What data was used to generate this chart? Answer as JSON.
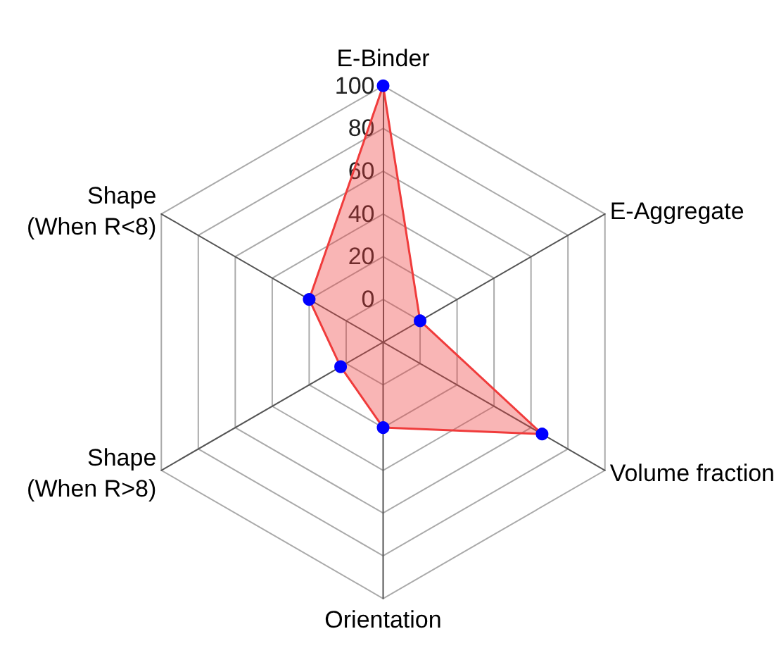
{
  "chart_data": {
    "type": "radar",
    "categories": [
      "E-Binder",
      "E-Aggregate",
      "Volume fraction",
      "Orientation",
      "Shape\n(When R>8)",
      "Shape\n(When R<8)"
    ],
    "series": [
      {
        "color": "#f03c3c",
        "colors": [
          "#0000ff",
          "#0000ff",
          "#0000ff",
          "#0000ff",
          "#0000ff",
          "#0000ff"
        ],
        "values": [
          100,
          0,
          66,
          20,
          3,
          20
        ]
      }
    ],
    "ylim": [
      -20,
      100
    ],
    "yticks": [
      0,
      20,
      40,
      60,
      80,
      100
    ],
    "marker": "circle",
    "grid": true
  }
}
